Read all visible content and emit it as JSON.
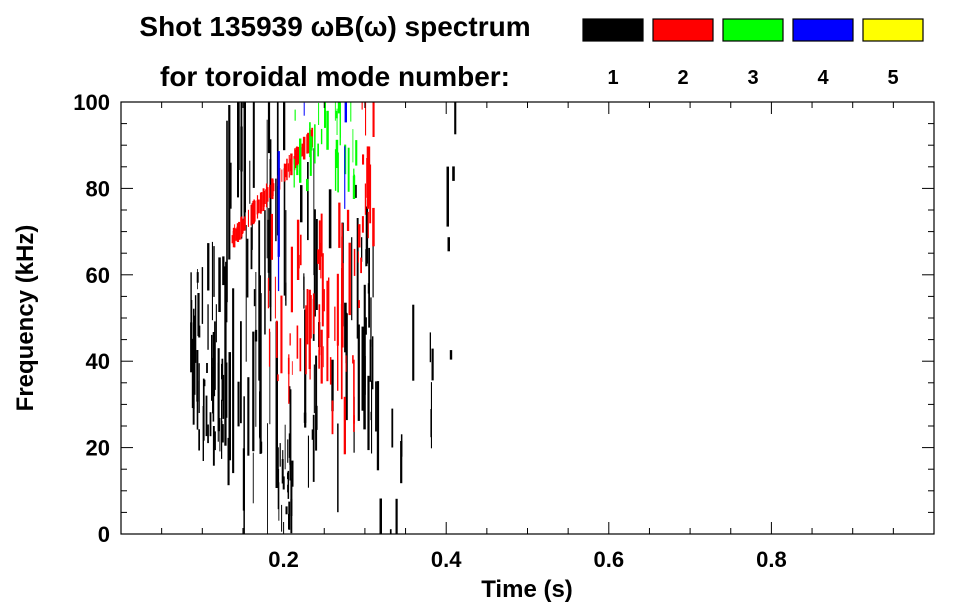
{
  "chart_data": {
    "type": "heatmap",
    "title_line1": "Shot 135939 ωB(ω) spectrum",
    "title_line2": "for toroidal mode number:",
    "xlabel": "Time (s)",
    "ylabel": "Frequency (kHz)",
    "xlim": [
      0.0,
      1.0
    ],
    "ylim": [
      0,
      100
    ],
    "x_ticks": [
      {
        "value": 0.2,
        "label": "0.2"
      },
      {
        "value": 0.4,
        "label": "0.4"
      },
      {
        "value": 0.6,
        "label": "0.6"
      },
      {
        "value": 0.8,
        "label": "0.8"
      }
    ],
    "y_ticks": [
      {
        "value": 0,
        "label": "0"
      },
      {
        "value": 20,
        "label": "20"
      },
      {
        "value": 40,
        "label": "40"
      },
      {
        "value": 60,
        "label": "60"
      },
      {
        "value": 80,
        "label": "80"
      },
      {
        "value": 100,
        "label": "100"
      }
    ],
    "legend": [
      {
        "mode": "1",
        "color": "#000000"
      },
      {
        "mode": "2",
        "color": "#ff0000"
      },
      {
        "mode": "3",
        "color": "#00ff00"
      },
      {
        "mode": "4",
        "color": "#0000ff"
      },
      {
        "mode": "5",
        "color": "#ffff00"
      }
    ],
    "series": [
      {
        "mode": "1",
        "color": "#000000",
        "features": [
          {
            "t": [
              0.085,
              0.125
            ],
            "f": [
              20,
              62
            ],
            "density": 0.95
          },
          {
            "t": [
              0.125,
              0.2
            ],
            "f": [
              8,
              100
            ],
            "density": 0.5
          },
          {
            "t": [
              0.19,
              0.21
            ],
            "f": [
              2,
              22
            ],
            "density": 0.8
          },
          {
            "t": [
              0.2,
              0.3
            ],
            "f": [
              15,
              80
            ],
            "density": 0.3
          },
          {
            "t": [
              0.295,
              0.315
            ],
            "f": [
              25,
              70
            ],
            "density": 0.7
          },
          {
            "t": [
              0.315,
              0.4
            ],
            "f": [
              0,
              45
            ],
            "density": 0.1
          },
          {
            "t": [
              0.4,
              0.41
            ],
            "f": [
              40,
              100
            ],
            "density": 0.4
          }
        ]
      },
      {
        "mode": "2",
        "color": "#ff0000",
        "features": [
          {
            "t": [
              0.135,
              0.235
            ],
            "f": [
              68,
              92
            ],
            "density": 0.6,
            "chirp": true
          },
          {
            "t": [
              0.18,
              0.25
            ],
            "f": [
              30,
              70
            ],
            "density": 0.35
          },
          {
            "t": [
              0.24,
              0.3
            ],
            "f": [
              25,
              75
            ],
            "density": 0.35
          },
          {
            "t": [
              0.295,
              0.31
            ],
            "f": [
              70,
              100
            ],
            "density": 0.6
          }
        ]
      },
      {
        "mode": "3",
        "color": "#00ff00",
        "features": [
          {
            "t": [
              0.21,
              0.29
            ],
            "f": [
              80,
              100
            ],
            "density": 0.3
          }
        ]
      },
      {
        "mode": "4",
        "color": "#0000ff",
        "features": [
          {
            "t": [
              0.15,
              0.28
            ],
            "f": [
              20,
              100
            ],
            "density": 0.03
          }
        ]
      },
      {
        "mode": "5",
        "color": "#ffff00",
        "features": []
      }
    ]
  }
}
